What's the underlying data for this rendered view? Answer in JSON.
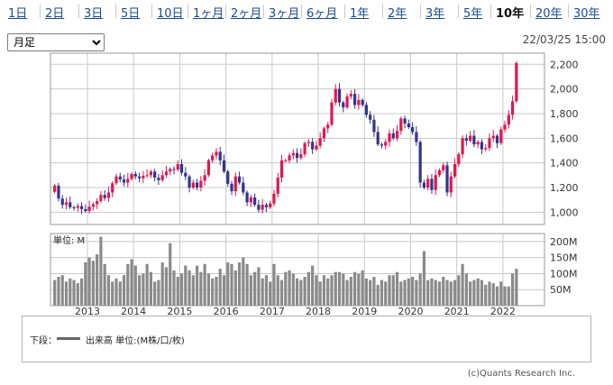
{
  "tabs": [
    {
      "label": "1日",
      "active": false
    },
    {
      "label": "2日",
      "active": false
    },
    {
      "label": "3日",
      "active": false
    },
    {
      "label": "5日",
      "active": false
    },
    {
      "label": "10日",
      "active": false
    },
    {
      "label": "1ヶ月",
      "active": false
    },
    {
      "label": "2ヶ月",
      "active": false
    },
    {
      "label": "3ヶ月",
      "active": false
    },
    {
      "label": "6ヶ月",
      "active": false
    },
    {
      "label": "1年",
      "active": false
    },
    {
      "label": "2年",
      "active": false
    },
    {
      "label": "3年",
      "active": false
    },
    {
      "label": "5年",
      "active": false
    },
    {
      "label": "10年",
      "active": true
    },
    {
      "label": "20年",
      "active": false
    },
    {
      "label": "30年",
      "active": false
    }
  ],
  "controls": {
    "period_select": "月足",
    "period_options": [
      "月足"
    ],
    "timestamp": "22/03/25 15:00"
  },
  "legend": {
    "prefix": "下段：",
    "label": "出来高 単位:(M株/口/枚)"
  },
  "copyright": "(c)Quants Research Inc.",
  "colors": {
    "up": "#e0174f",
    "down": "#33338f",
    "volume": "#8a8a8a",
    "grid": "#c8c8c8"
  },
  "chart_data": [
    {
      "type": "candlestick",
      "interval": "monthly",
      "y_ticks": [
        1000,
        1200,
        1400,
        1600,
        1800,
        2000,
        2200
      ],
      "ylim": [
        900,
        2290
      ],
      "x_ticks": [
        "2013",
        "2014",
        "2015",
        "2016",
        "2017",
        "2018",
        "2019",
        "2020",
        "2021",
        "2022"
      ],
      "x_start": 2012.2,
      "x_end": 2022.9,
      "grid": true,
      "closes": [
        1215,
        1110,
        1060,
        1080,
        1040,
        1035,
        1050,
        1025,
        1010,
        1045,
        1065,
        1090,
        1140,
        1115,
        1160,
        1235,
        1290,
        1265,
        1240,
        1270,
        1310,
        1290,
        1275,
        1295,
        1300,
        1330,
        1280,
        1260,
        1300,
        1330,
        1350,
        1345,
        1390,
        1320,
        1290,
        1200,
        1240,
        1200,
        1255,
        1300,
        1420,
        1460,
        1490,
        1420,
        1330,
        1230,
        1170,
        1290,
        1240,
        1160,
        1080,
        1120,
        1060,
        1020,
        1060,
        1040,
        1070,
        1150,
        1280,
        1420,
        1420,
        1460,
        1480,
        1440,
        1470,
        1560,
        1570,
        1510,
        1540,
        1600,
        1680,
        1710,
        1890,
        2000,
        1890,
        1850,
        1940,
        1960,
        1870,
        1910,
        1870,
        1790,
        1750,
        1650,
        1550,
        1540,
        1570,
        1640,
        1600,
        1660,
        1760,
        1720,
        1690,
        1650,
        1570,
        1240,
        1200,
        1270,
        1180,
        1300,
        1340,
        1380,
        1160,
        1290,
        1390,
        1470,
        1600,
        1580,
        1620,
        1550,
        1570,
        1510,
        1520,
        1600,
        1620,
        1560,
        1670,
        1710,
        1790,
        1900,
        2210
      ],
      "volumes": [
        80,
        90,
        95,
        75,
        85,
        80,
        70,
        85,
        135,
        150,
        140,
        160,
        215,
        130,
        95,
        75,
        85,
        75,
        95,
        130,
        145,
        125,
        95,
        100,
        130,
        105,
        75,
        80,
        135,
        120,
        195,
        110,
        90,
        100,
        125,
        110,
        95,
        125,
        105,
        130,
        100,
        85,
        90,
        115,
        95,
        135,
        130,
        110,
        135,
        150,
        130,
        95,
        105,
        120,
        85,
        95,
        75,
        130,
        95,
        80,
        105,
        110,
        100,
        85,
        80,
        90,
        105,
        125,
        95,
        75,
        95,
        85,
        95,
        105,
        105,
        100,
        80,
        90,
        105,
        100,
        110,
        85,
        80,
        90,
        65,
        80,
        75,
        95,
        95,
        105,
        75,
        80,
        85,
        90,
        80,
        100,
        170,
        80,
        85,
        80,
        75,
        90,
        80,
        75,
        80,
        95,
        130,
        100,
        75,
        80,
        85,
        80,
        65,
        75,
        70,
        60,
        75,
        60,
        60,
        100,
        115
      ],
      "volume_ticks": [
        50,
        100,
        150,
        200
      ],
      "volume_unit": "単位: M",
      "volume_ylim": [
        0,
        225
      ]
    }
  ]
}
